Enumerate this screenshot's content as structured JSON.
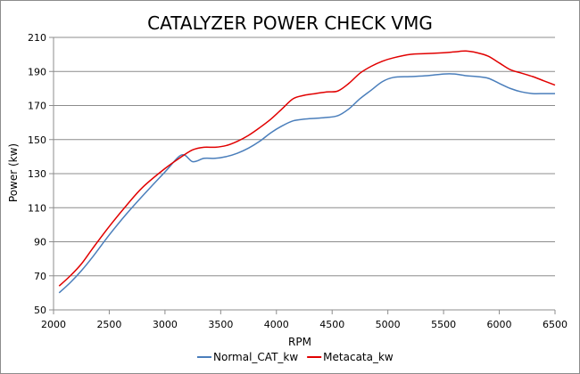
{
  "chart_data": {
    "type": "line",
    "title": "CATALYZER POWER CHECK VMG",
    "xlabel": "RPM",
    "ylabel": "Power (kw)",
    "xlim": [
      2000,
      6500
    ],
    "ylim": [
      50,
      210
    ],
    "xticks": [
      2000,
      2500,
      3000,
      3500,
      4000,
      4500,
      5000,
      5500,
      6000,
      6500
    ],
    "yticks": [
      50,
      70,
      90,
      110,
      130,
      150,
      170,
      190,
      210
    ],
    "grid": "horizontal",
    "legend_position": "bottom",
    "series": [
      {
        "name": "Normal_CAT_kw",
        "color": "#4a7ebb",
        "x": [
          2050,
          2150,
          2250,
          2350,
          2500,
          2650,
          2800,
          3000,
          3150,
          3250,
          3350,
          3450,
          3550,
          3650,
          3750,
          3850,
          3950,
          4050,
          4150,
          4250,
          4350,
          4450,
          4550,
          4650,
          4750,
          4850,
          4950,
          5050,
          5200,
          5350,
          5500,
          5600,
          5700,
          5800,
          5900,
          6000,
          6100,
          6200,
          6300,
          6400,
          6500
        ],
        "y": [
          60,
          66,
          73,
          81,
          94,
          106,
          117,
          131,
          141,
          137,
          139,
          139,
          140,
          142,
          145,
          149,
          154,
          158,
          161,
          162,
          162.5,
          163,
          164,
          168,
          174,
          179,
          184,
          186.5,
          187,
          187.5,
          188.5,
          188.5,
          187.5,
          187,
          186,
          183,
          180,
          178,
          177,
          177,
          177
        ]
      },
      {
        "name": "Metacata_kw",
        "color": "#e10000",
        "x": [
          2050,
          2150,
          2250,
          2350,
          2500,
          2650,
          2800,
          3000,
          3150,
          3250,
          3350,
          3450,
          3550,
          3650,
          3750,
          3850,
          3950,
          4050,
          4150,
          4250,
          4350,
          4450,
          4550,
          4650,
          4750,
          4850,
          4950,
          5050,
          5200,
          5350,
          5500,
          5600,
          5700,
          5800,
          5900,
          6000,
          6100,
          6200,
          6300,
          6400,
          6500
        ],
        "y": [
          64,
          70,
          77,
          86,
          99,
          111,
          122,
          133,
          140,
          144,
          145.5,
          145.5,
          146.5,
          149,
          152.5,
          157,
          162,
          168,
          174,
          176,
          177,
          178,
          178.5,
          183,
          189,
          193,
          196,
          198,
          200,
          200.5,
          201,
          201.5,
          202,
          201,
          199,
          195,
          191,
          189,
          187,
          184.5,
          182
        ]
      }
    ]
  }
}
